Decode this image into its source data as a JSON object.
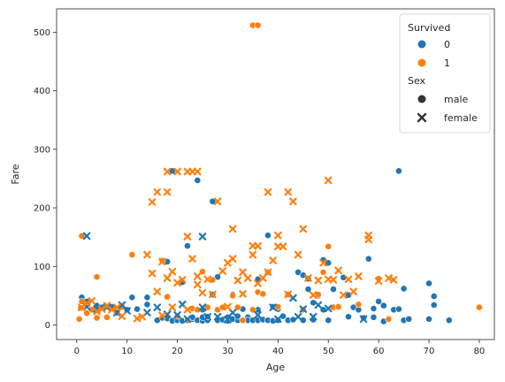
{
  "chart_data": {
    "type": "scatter",
    "xlabel": "Age",
    "ylabel": "Fare",
    "xlim": [
      -4,
      83
    ],
    "ylim": [
      -25,
      540
    ],
    "xticks": [
      "0",
      "10",
      "20",
      "30",
      "40",
      "50",
      "60",
      "70",
      "80"
    ],
    "yticks": [
      "0",
      "100",
      "200",
      "300",
      "400",
      "500"
    ],
    "grid": false,
    "legend_position": "top-right",
    "legend": {
      "hue_title": "Survived",
      "hue_entries": [
        {
          "label": "0",
          "color": "#1f77b4"
        },
        {
          "label": "1",
          "color": "#ff7f0e"
        }
      ],
      "style_title": "Sex",
      "style_entries": [
        {
          "label": "male",
          "marker": "circle"
        },
        {
          "label": "female",
          "marker": "x"
        }
      ]
    },
    "series": [
      {
        "survived": "0",
        "sex": "male",
        "color": "#1f77b4",
        "marker": "circle",
        "points": [
          [
            1,
            47
          ],
          [
            2,
            40
          ],
          [
            4,
            33
          ],
          [
            5,
            30
          ],
          [
            7,
            31
          ],
          [
            8,
            21
          ],
          [
            9,
            31
          ],
          [
            10,
            26
          ],
          [
            11,
            47
          ],
          [
            12,
            27
          ],
          [
            14,
            47
          ],
          [
            14,
            35
          ],
          [
            16,
            8
          ],
          [
            17,
            12
          ],
          [
            18,
            108
          ],
          [
            18,
            11
          ],
          [
            19,
            8
          ],
          [
            19,
            7
          ],
          [
            19,
            263
          ],
          [
            20,
            9
          ],
          [
            20,
            8
          ],
          [
            21,
            7
          ],
          [
            21,
            73
          ],
          [
            22,
            9
          ],
          [
            22,
            135
          ],
          [
            22,
            7
          ],
          [
            23,
            10
          ],
          [
            23,
            13
          ],
          [
            24,
            247
          ],
          [
            24,
            8
          ],
          [
            25,
            7
          ],
          [
            25,
            26
          ],
          [
            25,
            13
          ],
          [
            26,
            8
          ],
          [
            26,
            14
          ],
          [
            27,
            211
          ],
          [
            27,
            52
          ],
          [
            28,
            8
          ],
          [
            28,
            26
          ],
          [
            28,
            82
          ],
          [
            29,
            9
          ],
          [
            29,
            30
          ],
          [
            30,
            8
          ],
          [
            30,
            7
          ],
          [
            30,
            13
          ],
          [
            31,
            10
          ],
          [
            31,
            52
          ],
          [
            32,
            8
          ],
          [
            32,
            15
          ],
          [
            33,
            9
          ],
          [
            33,
            27
          ],
          [
            34,
            13
          ],
          [
            34,
            8
          ],
          [
            35,
            8
          ],
          [
            35,
            26
          ],
          [
            36,
            8
          ],
          [
            36,
            26
          ],
          [
            36,
            78
          ],
          [
            37,
            9
          ],
          [
            37,
            52
          ],
          [
            38,
            8
          ],
          [
            38,
            153
          ],
          [
            39,
            31
          ],
          [
            39,
            7
          ],
          [
            40,
            8
          ],
          [
            40,
            27
          ],
          [
            41,
            15
          ],
          [
            42,
            8
          ],
          [
            42,
            52
          ],
          [
            43,
            9
          ],
          [
            44,
            90
          ],
          [
            45,
            8
          ],
          [
            45,
            85
          ],
          [
            46,
            61
          ],
          [
            46,
            79
          ],
          [
            47,
            9
          ],
          [
            47,
            38
          ],
          [
            48,
            50
          ],
          [
            49,
            26
          ],
          [
            49,
            111
          ],
          [
            50,
            8
          ],
          [
            50,
            106
          ],
          [
            51,
            61
          ],
          [
            52,
            30
          ],
          [
            53,
            81
          ],
          [
            54,
            14
          ],
          [
            54,
            51
          ],
          [
            55,
            30
          ],
          [
            56,
            26
          ],
          [
            57,
            12
          ],
          [
            58,
            113
          ],
          [
            59,
            13
          ],
          [
            59,
            28
          ],
          [
            60,
            40
          ],
          [
            61,
            33
          ],
          [
            61,
            6
          ],
          [
            62,
            10
          ],
          [
            63,
            26
          ],
          [
            64,
            263
          ],
          [
            64,
            27
          ],
          [
            65,
            8
          ],
          [
            65,
            62
          ],
          [
            66,
            10
          ],
          [
            70,
            71
          ],
          [
            71,
            34
          ],
          [
            71,
            49
          ],
          [
            70,
            10
          ],
          [
            74,
            8
          ]
        ]
      },
      {
        "survived": "1",
        "sex": "male",
        "color": "#ff7f0e",
        "marker": "circle",
        "points": [
          [
            0.5,
            10
          ],
          [
            0.8,
            29
          ],
          [
            1,
            152
          ],
          [
            1,
            40
          ],
          [
            2,
            20
          ],
          [
            3,
            26
          ],
          [
            4,
            82
          ],
          [
            4,
            12
          ],
          [
            6,
            13
          ],
          [
            9,
            31
          ],
          [
            11,
            120
          ],
          [
            17,
            110
          ],
          [
            18,
            48
          ],
          [
            20,
            15
          ],
          [
            22,
            8
          ],
          [
            23,
            28
          ],
          [
            24,
            26
          ],
          [
            25,
            91
          ],
          [
            26,
            30
          ],
          [
            27,
            77
          ],
          [
            28,
            26
          ],
          [
            29,
            30
          ],
          [
            31,
            50
          ],
          [
            32,
            30
          ],
          [
            33,
            8
          ],
          [
            35,
            512
          ],
          [
            36,
            512
          ],
          [
            35,
            26
          ],
          [
            36,
            56
          ],
          [
            37,
            53
          ],
          [
            38,
            90
          ],
          [
            40,
            31
          ],
          [
            42,
            52
          ],
          [
            45,
            26
          ],
          [
            48,
            52
          ],
          [
            49,
            90
          ],
          [
            50,
            134
          ],
          [
            51,
            30
          ],
          [
            52,
            31
          ],
          [
            56,
            35
          ],
          [
            60,
            79
          ],
          [
            62,
            10
          ],
          [
            80,
            30
          ]
        ]
      },
      {
        "survived": "0",
        "sex": "female",
        "color": "#1f77b4",
        "marker": "x",
        "points": [
          [
            2,
            152
          ],
          [
            2,
            31
          ],
          [
            4,
            27
          ],
          [
            6,
            30
          ],
          [
            8,
            21
          ],
          [
            9,
            34
          ],
          [
            10,
            24
          ],
          [
            14,
            21
          ],
          [
            16,
            30
          ],
          [
            18,
            18
          ],
          [
            20,
            17
          ],
          [
            21,
            35
          ],
          [
            22,
            10
          ],
          [
            25,
            151
          ],
          [
            25,
            30
          ],
          [
            26,
            14
          ],
          [
            28,
            14
          ],
          [
            30,
            9
          ],
          [
            31,
            21
          ],
          [
            36,
            17
          ],
          [
            39,
            30
          ],
          [
            40,
            10
          ],
          [
            43,
            46
          ],
          [
            44,
            14
          ],
          [
            45,
            27
          ],
          [
            47,
            14
          ],
          [
            48,
            34
          ],
          [
            50,
            28
          ],
          [
            57,
            10
          ]
        ]
      },
      {
        "survived": "1",
        "sex": "female",
        "color": "#ff7f0e",
        "marker": "x",
        "points": [
          [
            1,
            30
          ],
          [
            2,
            37
          ],
          [
            3,
            41
          ],
          [
            4,
            23
          ],
          [
            5,
            27
          ],
          [
            6,
            33
          ],
          [
            7,
            26
          ],
          [
            8,
            30
          ],
          [
            9,
            15
          ],
          [
            12,
            11
          ],
          [
            13,
            14
          ],
          [
            14,
            120
          ],
          [
            15,
            210
          ],
          [
            15,
            88
          ],
          [
            16,
            227
          ],
          [
            16,
            57
          ],
          [
            17,
            108
          ],
          [
            17,
            16
          ],
          [
            18,
            262
          ],
          [
            18,
            227
          ],
          [
            18,
            80
          ],
          [
            19,
            91
          ],
          [
            19,
            30
          ],
          [
            20,
            262
          ],
          [
            20,
            72
          ],
          [
            21,
            77
          ],
          [
            22,
            151
          ],
          [
            22,
            262
          ],
          [
            22,
            26
          ],
          [
            23,
            262
          ],
          [
            23,
            113
          ],
          [
            24,
            262
          ],
          [
            24,
            69
          ],
          [
            24,
            83
          ],
          [
            25,
            55
          ],
          [
            26,
            78
          ],
          [
            27,
            52
          ],
          [
            28,
            211
          ],
          [
            29,
            92
          ],
          [
            30,
            106
          ],
          [
            30,
            31
          ],
          [
            31,
            113
          ],
          [
            31,
            164
          ],
          [
            32,
            76
          ],
          [
            33,
            90
          ],
          [
            33,
            53
          ],
          [
            34,
            80
          ],
          [
            35,
            135
          ],
          [
            35,
            120
          ],
          [
            36,
            135
          ],
          [
            36,
            71
          ],
          [
            37,
            80
          ],
          [
            38,
            227
          ],
          [
            38,
            90
          ],
          [
            39,
            110
          ],
          [
            40,
            153
          ],
          [
            40,
            134
          ],
          [
            41,
            134
          ],
          [
            42,
            227
          ],
          [
            42,
            52
          ],
          [
            43,
            211
          ],
          [
            44,
            120
          ],
          [
            45,
            164
          ],
          [
            46,
            80
          ],
          [
            47,
            51
          ],
          [
            48,
            76
          ],
          [
            49,
            106
          ],
          [
            50,
            247
          ],
          [
            50,
            78
          ],
          [
            51,
            77
          ],
          [
            52,
            93
          ],
          [
            53,
            51
          ],
          [
            54,
            78
          ],
          [
            55,
            57
          ],
          [
            56,
            83
          ],
          [
            58,
            153
          ],
          [
            58,
            146
          ],
          [
            60,
            75
          ],
          [
            62,
            80
          ],
          [
            63,
            77
          ]
        ]
      }
    ]
  }
}
